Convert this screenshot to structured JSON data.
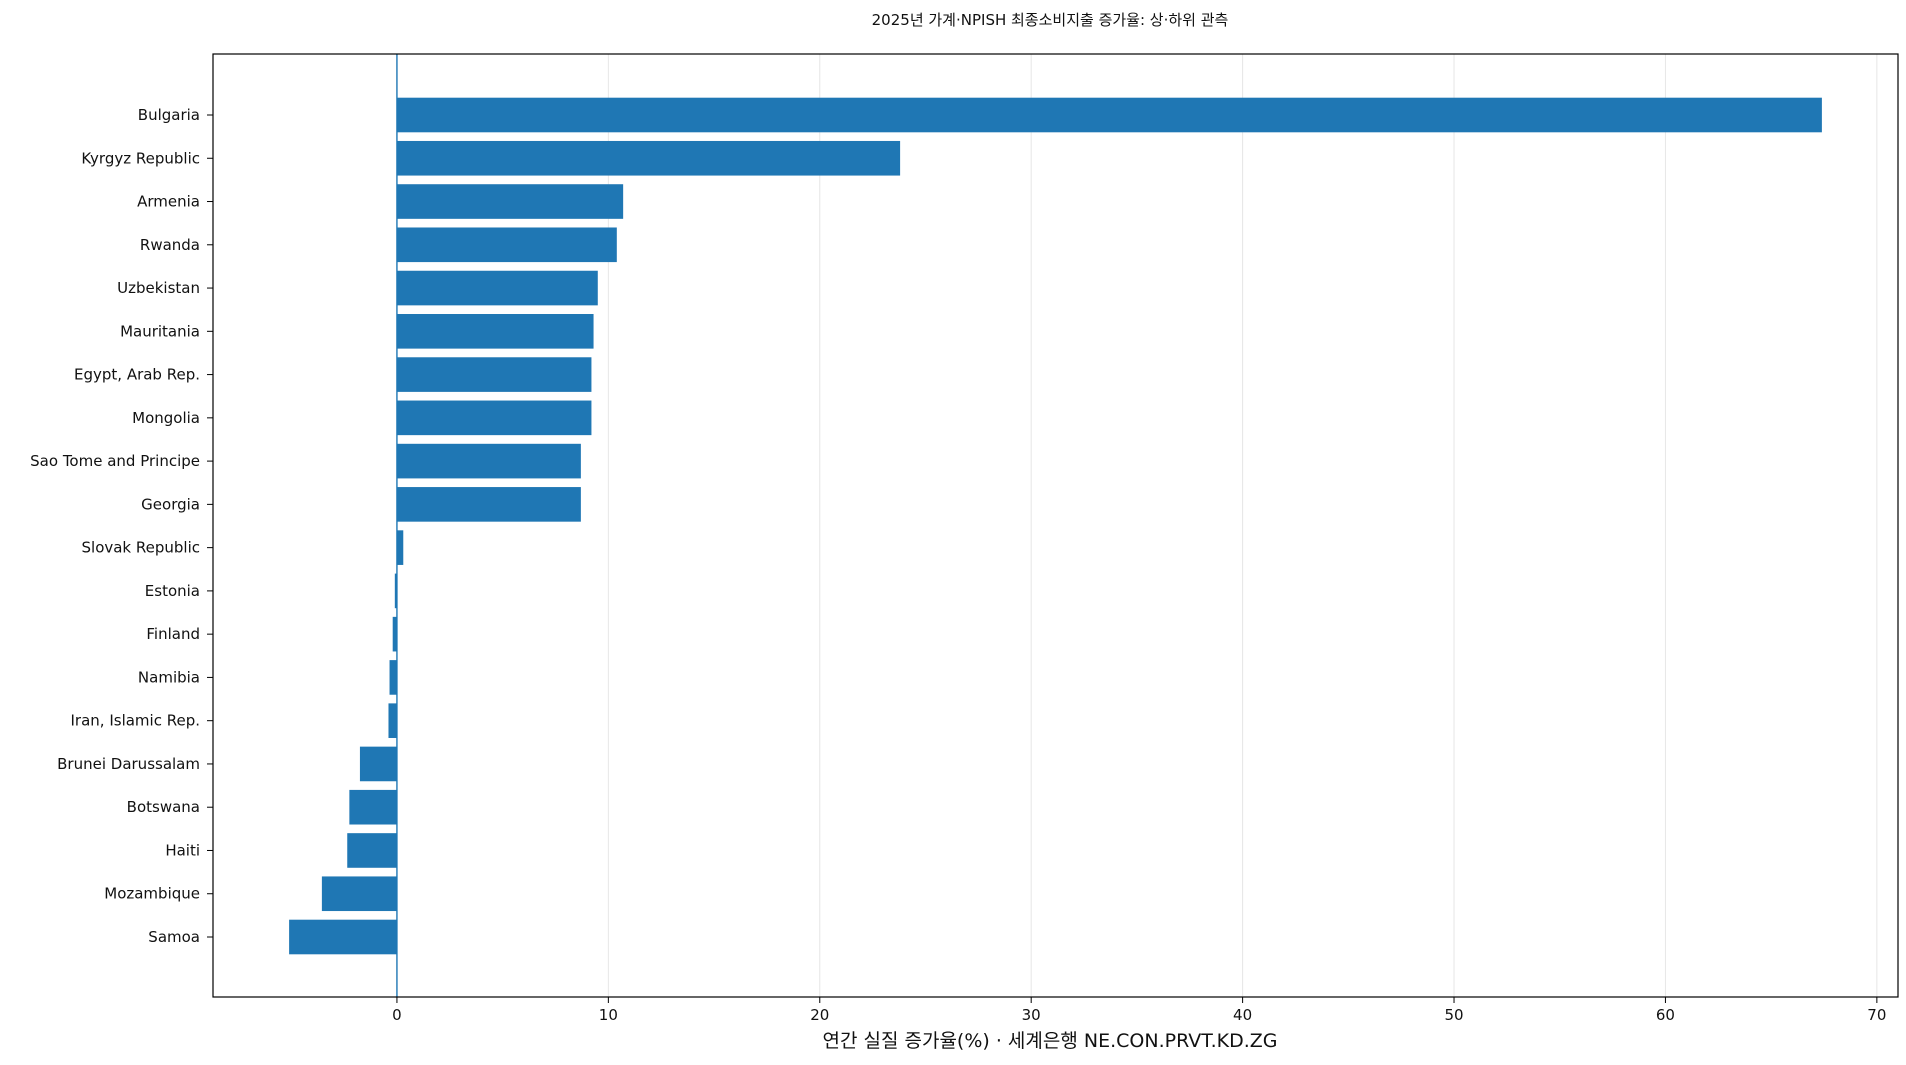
{
  "chart_data": {
    "type": "bar",
    "orientation": "horizontal",
    "title": "2025년 가계·NPISH 최종소비지출 증가율: 상·하위 관측",
    "xlabel": "연간 실질 증가율(%) · 세계은행 NE.CON.PRVT.KD.ZG",
    "ylabel": "",
    "categories": [
      "Bulgaria",
      "Kyrgyz Republic",
      "Armenia",
      "Rwanda",
      "Uzbekistan",
      "Mauritania",
      "Egypt, Arab Rep.",
      "Mongolia",
      "Sao Tome and Principe",
      "Georgia",
      "Slovak Republic",
      "Estonia",
      "Finland",
      "Namibia",
      "Iran, Islamic Rep.",
      "Brunei Darussalam",
      "Botswana",
      "Haiti",
      "Mozambique",
      "Samoa"
    ],
    "values": [
      67.4,
      23.8,
      10.7,
      10.4,
      9.5,
      9.3,
      9.2,
      9.2,
      8.7,
      8.7,
      0.3,
      -0.1,
      -0.2,
      -0.35,
      -0.4,
      -1.75,
      -2.25,
      -2.35,
      -3.55,
      -5.1
    ],
    "xlim": [
      -8.7,
      71
    ],
    "xticks": [
      0,
      10,
      20,
      30,
      40,
      50,
      60,
      70
    ],
    "grid": "vertical",
    "bar_color": "#1f77b4",
    "zero_line_color": "#1f77b4",
    "legend": "none"
  }
}
